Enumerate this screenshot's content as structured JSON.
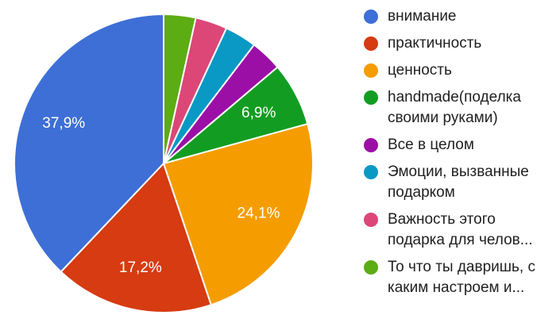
{
  "chart_data": {
    "type": "pie",
    "start_angle_deg": 90,
    "direction": "counterclockwise",
    "slices": [
      {
        "label": "внимание",
        "value": 37.9,
        "value_label": "37,9%",
        "color": "#3d6fd6"
      },
      {
        "label": "практичность",
        "value": 17.2,
        "value_label": "17,2%",
        "color": "#d63b12"
      },
      {
        "label": "ценность",
        "value": 24.1,
        "value_label": "24,1%",
        "color": "#f59d00"
      },
      {
        "label": "handmade(поделка своими руками)",
        "value": 6.9,
        "value_label": "6,9%",
        "color": "#129d22"
      },
      {
        "label": "Все в целом",
        "value": 3.45,
        "value_label": "",
        "color": "#9b0fa6"
      },
      {
        "label": "Эмоции, вызванные подарком",
        "value": 3.45,
        "value_label": "",
        "color": "#0a99c4"
      },
      {
        "label": "Важность этого подарка для челов...",
        "value": 3.45,
        "value_label": "",
        "color": "#dc4778"
      },
      {
        "label": "То что ты давришь, с каким настроем и...",
        "value": 3.45,
        "value_label": "",
        "color": "#5cac14"
      }
    ],
    "legend_position": "right"
  }
}
